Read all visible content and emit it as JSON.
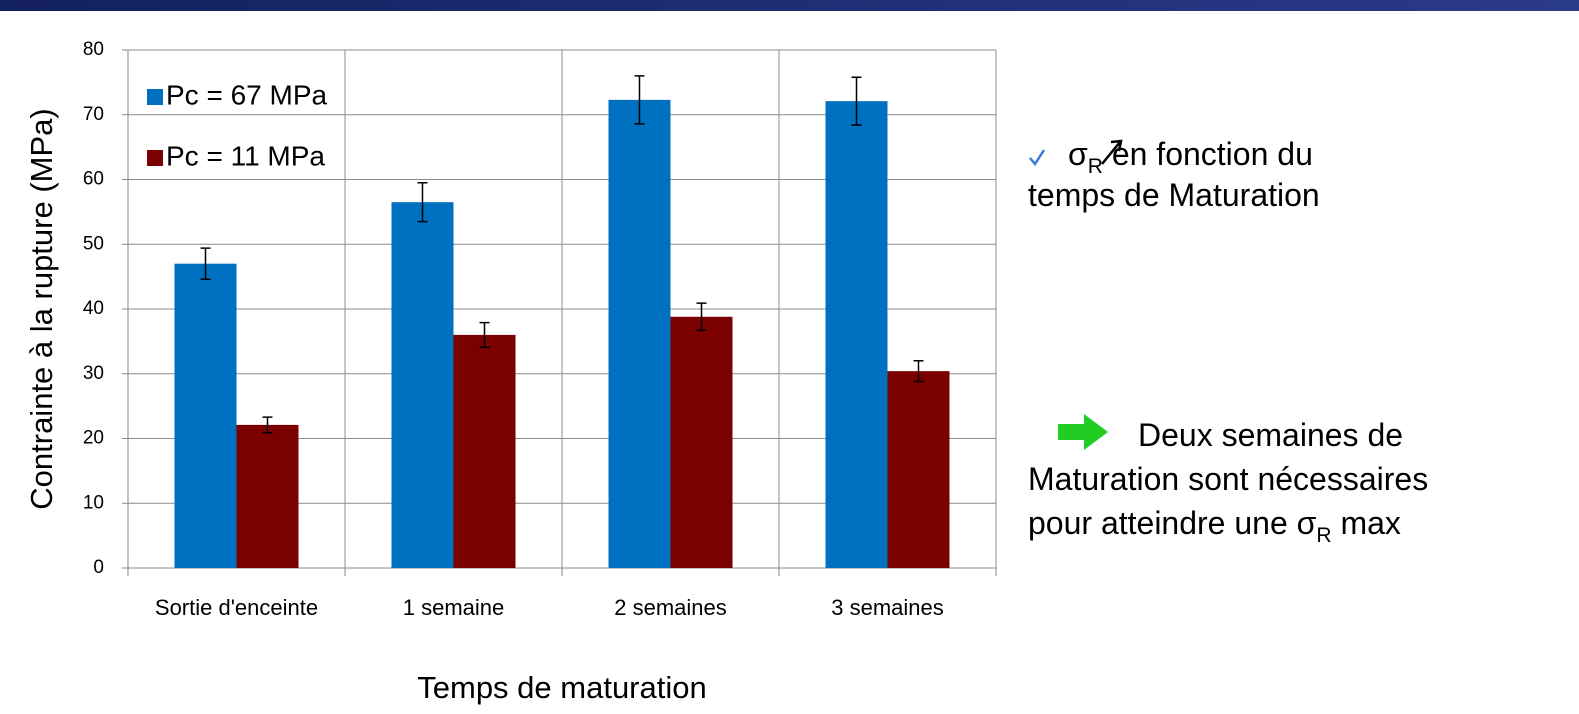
{
  "chart_data": {
    "type": "bar",
    "ylabel": "Contrainte à la rupture (MPa)",
    "xlabel": "Temps de maturation",
    "categories": [
      "Sortie d'enceinte",
      "1 semaine",
      "2 semaines",
      "3 semaines"
    ],
    "series": [
      {
        "name": "Pc = 67 MPa",
        "color": "#0070c0",
        "values": [
          47,
          56.5,
          72.3,
          72.1
        ],
        "errors": [
          2.4,
          3,
          3.7,
          3.7
        ]
      },
      {
        "name": "Pc = 11 MPa",
        "color": "#7b0000",
        "values": [
          22.1,
          36,
          38.8,
          30.4
        ],
        "errors": [
          1.2,
          1.9,
          2.1,
          1.6
        ]
      }
    ],
    "ylim": [
      0,
      80
    ],
    "yticks": [
      0,
      10,
      20,
      30,
      40,
      50,
      60,
      70,
      80
    ],
    "grid": true,
    "legend": "upper left"
  },
  "annotation_1": {
    "line_1_start": "σ",
    "line_1_sub": "R",
    "line_1_end": " en fonction du",
    "line_2": "temps de Maturation"
  },
  "annotation_2": {
    "line_1": "Deux semaines de",
    "line_2": "Maturation sont nécessaires",
    "line_3_start": "pour atteindre une σ",
    "line_3_sub": "R",
    "line_3_end": " max"
  }
}
